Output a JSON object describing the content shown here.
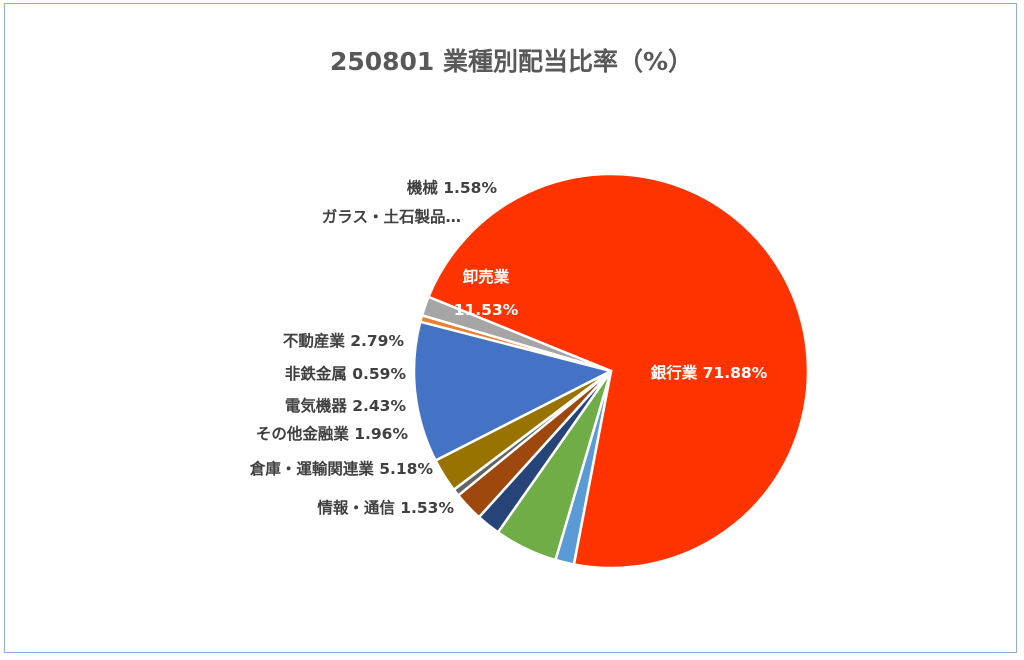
{
  "chart_data": {
    "type": "pie",
    "title": "250801 業種別配当比率（%）",
    "slices": [
      {
        "name": "銀行業",
        "value": 71.88,
        "label": "銀行業 71.88%",
        "color": "#ff3300"
      },
      {
        "name": "情報・通信",
        "value": 1.53,
        "label": "情報・通信 1.53%",
        "color": "#5b9bd5"
      },
      {
        "name": "倉庫・運輸関連業",
        "value": 5.18,
        "label": "倉庫・運輸関連業 5.18%",
        "color": "#70ad47"
      },
      {
        "name": "その他金融業",
        "value": 1.96,
        "label": "その他金融業 1.96%",
        "color": "#264478"
      },
      {
        "name": "電気機器",
        "value": 2.43,
        "label": "電気機器 2.43%",
        "color": "#9e480e"
      },
      {
        "name": "非鉄金属",
        "value": 0.59,
        "label": "非鉄金属 0.59%",
        "color": "#636363"
      },
      {
        "name": "不動産業",
        "value": 2.79,
        "label": "不動産業 2.79%",
        "color": "#997300"
      },
      {
        "name": "卸売業",
        "value": 11.53,
        "label_lines": [
          "卸売業",
          "11.53%"
        ],
        "color": "#4472c4"
      },
      {
        "name": "ガラス・土石製品",
        "value": 0.53,
        "label": "ガラス・土石製品…",
        "color": "#ed7d31"
      },
      {
        "name": "機械",
        "value": 1.58,
        "label": "機械 1.58%",
        "color": "#a5a5a5"
      }
    ]
  }
}
